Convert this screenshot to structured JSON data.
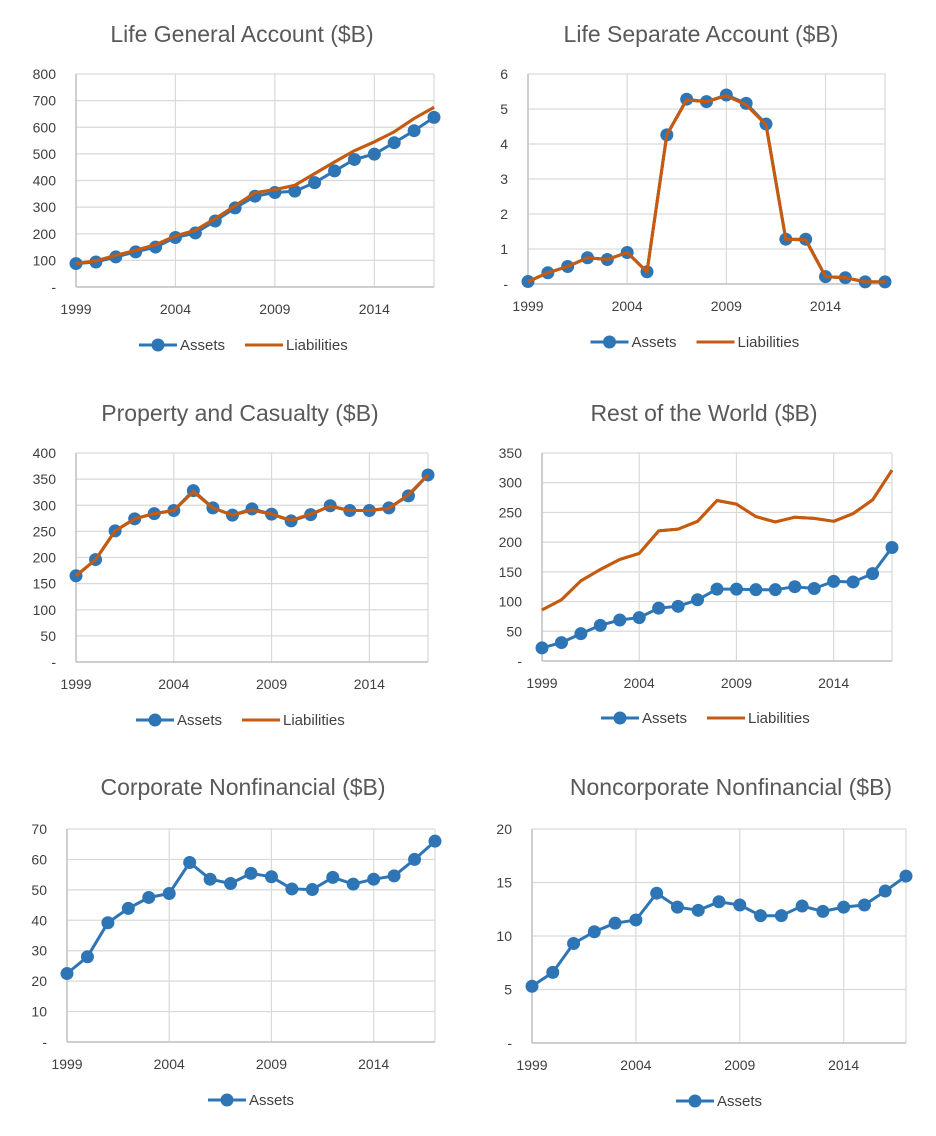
{
  "colors": {
    "assets": "#2e75b6",
    "liabilities": "#c55a11"
  },
  "chart_data": [
    {
      "type": "line",
      "title": "Life General Account ($B)",
      "x": [
        1999,
        2000,
        2001,
        2002,
        2003,
        2004,
        2005,
        2006,
        2007,
        2008,
        2009,
        2010,
        2011,
        2012,
        2013,
        2014,
        2015,
        2016,
        2017
      ],
      "xticks": [
        "1999",
        "2004",
        "2009",
        "2014"
      ],
      "yticks": [
        "-",
        "100",
        "200",
        "300",
        "400",
        "500",
        "600",
        "700",
        "800"
      ],
      "ylim": [
        0,
        800
      ],
      "grid": true,
      "legend": "bottom",
      "series": [
        {
          "name": "Assets",
          "markers": true,
          "values": [
            88,
            94,
            113,
            132,
            150,
            186,
            203,
            248,
            297,
            341,
            355,
            360,
            392,
            436,
            479,
            499,
            542,
            587,
            637
          ]
        },
        {
          "name": "Liabilities",
          "markers": false,
          "values": [
            88,
            98,
            119,
            138,
            159,
            192,
            213,
            257,
            305,
            354,
            366,
            382,
            426,
            470,
            512,
            545,
            583,
            633,
            675
          ]
        }
      ]
    },
    {
      "type": "line",
      "title": "Life Separate Account ($B)",
      "x": [
        1999,
        2000,
        2001,
        2002,
        2003,
        2004,
        2005,
        2006,
        2007,
        2008,
        2009,
        2010,
        2011,
        2012,
        2013,
        2014,
        2015,
        2016,
        2017
      ],
      "xticks": [
        "1999",
        "2004",
        "2009",
        "2014"
      ],
      "yticks": [
        "-",
        "1",
        "2",
        "3",
        "4",
        "5",
        "6"
      ],
      "ylim": [
        0,
        6
      ],
      "grid": true,
      "legend": "bottom",
      "series": [
        {
          "name": "Assets",
          "markers": true,
          "values": [
            0.07,
            0.32,
            0.5,
            0.75,
            0.7,
            0.9,
            0.35,
            4.26,
            5.28,
            5.21,
            5.4,
            5.16,
            4.57,
            1.28,
            1.28,
            0.21,
            0.18,
            0.06,
            0.06
          ]
        },
        {
          "name": "Liabilities",
          "markers": false,
          "values": [
            0.07,
            0.32,
            0.5,
            0.75,
            0.7,
            0.9,
            0.35,
            4.26,
            5.26,
            5.21,
            5.38,
            5.12,
            4.55,
            1.28,
            1.26,
            0.21,
            0.18,
            0.06,
            0.06
          ]
        }
      ]
    },
    {
      "type": "line",
      "title": "Property and Casualty ($B)",
      "x": [
        1999,
        2000,
        2001,
        2002,
        2003,
        2004,
        2005,
        2006,
        2007,
        2008,
        2009,
        2010,
        2011,
        2012,
        2013,
        2014,
        2015,
        2016,
        2017
      ],
      "xticks": [
        "1999",
        "2004",
        "2009",
        "2014"
      ],
      "yticks": [
        "-",
        "50",
        "100",
        "150",
        "200",
        "250",
        "300",
        "350",
        "400"
      ],
      "ylim": [
        0,
        400
      ],
      "grid": true,
      "legend": "bottom",
      "series": [
        {
          "name": "Assets",
          "markers": true,
          "values": [
            165,
            196,
            251,
            274,
            284,
            290,
            328,
            295,
            281,
            293,
            283,
            270,
            282,
            299,
            290,
            290,
            295,
            318,
            358
          ]
        },
        {
          "name": "Liabilities",
          "markers": false,
          "values": [
            165,
            196,
            251,
            274,
            284,
            290,
            326,
            295,
            281,
            291,
            283,
            271,
            283,
            298,
            290,
            290,
            294,
            320,
            358
          ]
        }
      ]
    },
    {
      "type": "line",
      "title": "Rest of the World ($B)",
      "x": [
        1999,
        2000,
        2001,
        2002,
        2003,
        2004,
        2005,
        2006,
        2007,
        2008,
        2009,
        2010,
        2011,
        2012,
        2013,
        2014,
        2015,
        2016,
        2017
      ],
      "xticks": [
        "1999",
        "2004",
        "2009",
        "2014"
      ],
      "yticks": [
        "-",
        "50",
        "100",
        "150",
        "200",
        "250",
        "300",
        "350"
      ],
      "ylim": [
        0,
        350
      ],
      "grid": true,
      "legend": "bottom",
      "series": [
        {
          "name": "Assets",
          "markers": true,
          "values": [
            22,
            31,
            46,
            60,
            69,
            73,
            89,
            92,
            103,
            121,
            121,
            120,
            120,
            125,
            122,
            134,
            133,
            147,
            191
          ]
        },
        {
          "name": "Liabilities",
          "markers": false,
          "values": [
            86,
            103,
            135,
            154,
            171,
            181,
            219,
            222,
            235,
            270,
            264,
            243,
            234,
            242,
            240,
            235,
            248,
            271,
            321
          ]
        }
      ]
    },
    {
      "type": "line",
      "title": "Corporate Nonfinancial ($B)",
      "x": [
        1999,
        2000,
        2001,
        2002,
        2003,
        2004,
        2005,
        2006,
        2007,
        2008,
        2009,
        2010,
        2011,
        2012,
        2013,
        2014,
        2015,
        2016,
        2017
      ],
      "xticks": [
        "1999",
        "2004",
        "2009",
        "2014"
      ],
      "yticks": [
        "-",
        "10",
        "20",
        "30",
        "40",
        "50",
        "60",
        "70"
      ],
      "ylim": [
        0,
        70
      ],
      "grid": true,
      "legend": "bottom",
      "series": [
        {
          "name": "Assets",
          "markers": true,
          "values": [
            22.5,
            28,
            39.2,
            43.9,
            47.5,
            48.8,
            59,
            53.5,
            52.1,
            55.4,
            54.3,
            50.3,
            50.1,
            54.1,
            51.9,
            53.5,
            54.6,
            60,
            66
          ]
        }
      ]
    },
    {
      "type": "line",
      "title": "Noncorporate Nonfinancial ($B)",
      "x": [
        1999,
        2000,
        2001,
        2002,
        2003,
        2004,
        2005,
        2006,
        2007,
        2008,
        2009,
        2010,
        2011,
        2012,
        2013,
        2014,
        2015,
        2016,
        2017
      ],
      "xticks": [
        "1999",
        "2004",
        "2009",
        "2014"
      ],
      "yticks": [
        "-",
        "5",
        "10",
        "15",
        "20"
      ],
      "ylim": [
        0,
        20
      ],
      "grid": true,
      "legend": "bottom",
      "series": [
        {
          "name": "Assets",
          "markers": true,
          "values": [
            5.3,
            6.6,
            9.3,
            10.4,
            11.2,
            11.5,
            14,
            12.7,
            12.4,
            13.2,
            12.9,
            11.9,
            11.9,
            12.8,
            12.3,
            12.7,
            12.9,
            14.2,
            15.6
          ]
        }
      ]
    }
  ]
}
